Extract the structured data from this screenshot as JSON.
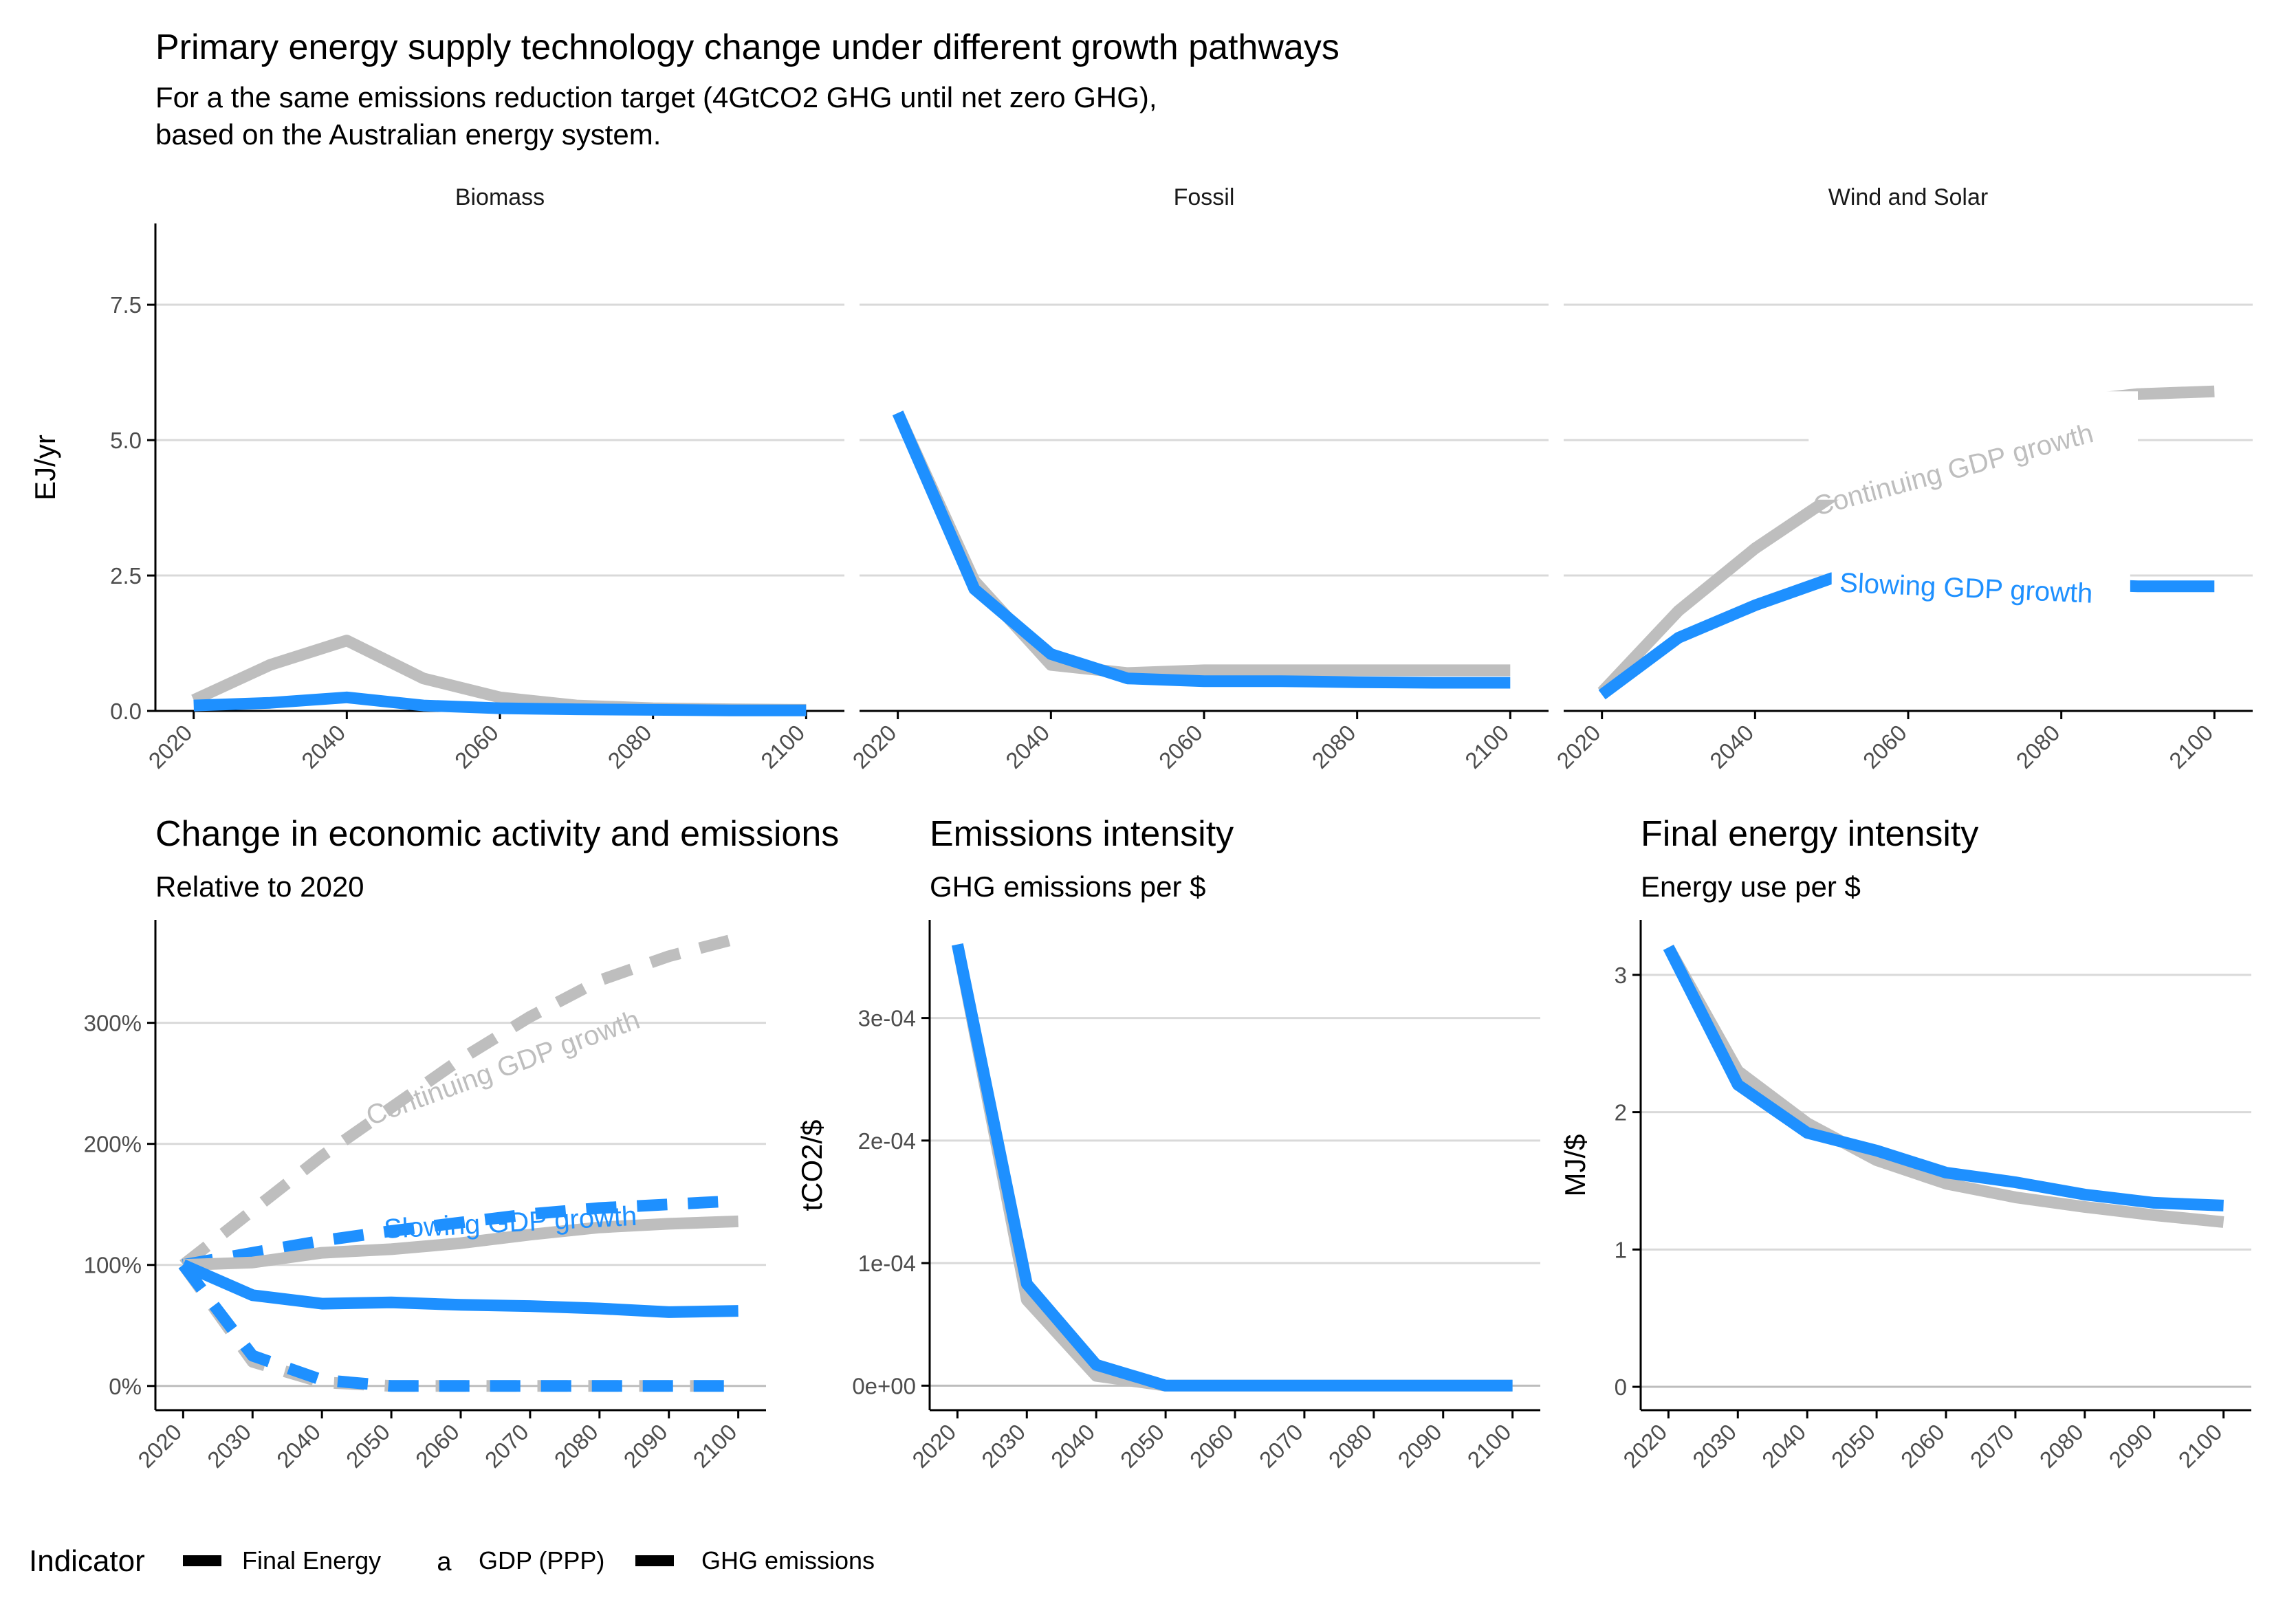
{
  "colors": {
    "continuing": "#bebebe",
    "slowing": "#1e90ff",
    "grid": "#d9d9d9",
    "axis": "#000000",
    "text": "#000000",
    "tick_text": "#4d4d4d"
  },
  "figure": {
    "title": "Primary energy supply technology change under different growth pathways",
    "subtitle_line1": "For a the same emissions reduction target (4GtCO2 GHG until net zero GHG),",
    "subtitle_line2": "based on the Australian energy system."
  },
  "legend": {
    "title": "Indicator",
    "items": [
      "Final Energy",
      "GDP (PPP)",
      "GHG emissions"
    ],
    "glyph_letter": "a"
  },
  "chart_data": [
    {
      "id": "primary-energy",
      "type": "line",
      "facets": [
        "Biomass",
        "Fossil",
        "Wind and Solar"
      ],
      "ylabel": "EJ/yr",
      "ylim": [
        0,
        9
      ],
      "yticks": [
        0,
        2.5,
        5,
        7.5
      ],
      "ytick_labels": [
        "0.0",
        "2.5",
        "5.0",
        "7.5"
      ],
      "xlim": [
        2015,
        2105
      ],
      "xticks": [
        2020,
        2040,
        2060,
        2080,
        2100
      ],
      "x": [
        2020,
        2030,
        2040,
        2050,
        2060,
        2070,
        2080,
        2090,
        2100
      ],
      "series": {
        "Biomass": {
          "continuing": [
            0.2,
            0.85,
            1.3,
            0.6,
            0.25,
            0.1,
            0.05,
            0.03,
            0.02
          ],
          "slowing": [
            0.1,
            0.15,
            0.25,
            0.1,
            0.05,
            0.03,
            0.02,
            0.01,
            0.01
          ]
        },
        "Fossil": {
          "continuing": [
            5.5,
            2.4,
            0.85,
            0.7,
            0.75,
            0.75,
            0.75,
            0.75,
            0.75
          ],
          "slowing": [
            5.5,
            2.25,
            1.05,
            0.6,
            0.55,
            0.55,
            0.53,
            0.52,
            0.52
          ]
        },
        "Wind and Solar": {
          "continuing": [
            0.35,
            1.85,
            3.0,
            3.95,
            4.75,
            5.35,
            5.7,
            5.85,
            5.9
          ],
          "slowing": [
            0.3,
            1.35,
            1.95,
            2.45,
            2.5,
            2.45,
            2.35,
            2.3,
            2.3
          ]
        }
      },
      "annotations": [
        {
          "facet": "Wind and Solar",
          "text": "Continuing GDP growth",
          "series": "continuing"
        },
        {
          "facet": "Wind and Solar",
          "text": "Slowing GDP growth",
          "series": "slowing"
        }
      ]
    },
    {
      "id": "economic-activity",
      "type": "line",
      "title": "Change in economic activity and emissions",
      "subtitle": "Relative to 2020",
      "ylim": [
        -0.2,
        3.85
      ],
      "yticks": [
        0,
        1,
        2,
        3
      ],
      "ytick_labels": [
        "0%",
        "100%",
        "200%",
        "300%"
      ],
      "xlim": [
        2016,
        2104
      ],
      "xticks": [
        2020,
        2030,
        2040,
        2050,
        2060,
        2070,
        2080,
        2090,
        2100
      ],
      "x": [
        2020,
        2030,
        2040,
        2050,
        2060,
        2070,
        2080,
        2090,
        2100
      ],
      "series": [
        {
          "indicator": "GDP (PPP)",
          "pathway": "continuing",
          "values": [
            1.0,
            1.45,
            1.9,
            2.3,
            2.7,
            3.05,
            3.35,
            3.55,
            3.7
          ]
        },
        {
          "indicator": "GDP (PPP)",
          "pathway": "slowing",
          "values": [
            1.0,
            1.1,
            1.2,
            1.28,
            1.35,
            1.42,
            1.47,
            1.5,
            1.53
          ]
        },
        {
          "indicator": "Final Energy",
          "pathway": "continuing",
          "values": [
            1.0,
            1.02,
            1.1,
            1.13,
            1.18,
            1.25,
            1.31,
            1.34,
            1.36
          ]
        },
        {
          "indicator": "Final Energy",
          "pathway": "slowing",
          "values": [
            1.0,
            0.75,
            0.68,
            0.69,
            0.67,
            0.66,
            0.64,
            0.61,
            0.62
          ]
        },
        {
          "indicator": "GHG emissions",
          "pathway": "continuing",
          "values": [
            1.0,
            0.2,
            0.03,
            0.0,
            0.0,
            0.0,
            0.0,
            0.0,
            0.0
          ]
        },
        {
          "indicator": "GHG emissions",
          "pathway": "slowing",
          "values": [
            1.0,
            0.25,
            0.05,
            0.0,
            0.0,
            0.0,
            0.0,
            0.0,
            0.0
          ]
        }
      ],
      "annotations": [
        {
          "text": "Continuing GDP growth",
          "series": "continuing"
        },
        {
          "text": "Slowing GDP growth",
          "series": "slowing"
        }
      ]
    },
    {
      "id": "emissions-intensity",
      "type": "line",
      "title": "Emissions intensity",
      "subtitle": "GHG emissions per $",
      "ylabel": "tCO2/$",
      "ylim": [
        -2e-05,
        0.00038
      ],
      "yticks": [
        0,
        0.0001,
        0.0002,
        0.0003
      ],
      "ytick_labels": [
        "0e+00",
        "1e-04",
        "2e-04",
        "3e-04"
      ],
      "xlim": [
        2016,
        2104
      ],
      "xticks": [
        2020,
        2030,
        2040,
        2050,
        2060,
        2070,
        2080,
        2090,
        2100
      ],
      "x": [
        2020,
        2030,
        2040,
        2050,
        2060,
        2070,
        2080,
        2090,
        2100
      ],
      "series": {
        "continuing": [
          0.00036,
          7e-05,
          8e-06,
          0,
          0,
          0,
          0,
          0,
          0
        ],
        "slowing": [
          0.00036,
          8.3e-05,
          1.7e-05,
          0,
          0,
          0,
          0,
          0,
          0
        ]
      }
    },
    {
      "id": "final-energy-intensity",
      "type": "line",
      "title": "Final energy intensity",
      "subtitle": "Energy use per $",
      "ylabel": "MJ/$",
      "ylim": [
        -0.17,
        3.4
      ],
      "yticks": [
        0,
        1,
        2,
        3
      ],
      "ytick_labels": [
        "0",
        "1",
        "2",
        "3"
      ],
      "xlim": [
        2016,
        2104
      ],
      "xticks": [
        2020,
        2030,
        2040,
        2050,
        2060,
        2070,
        2080,
        2090,
        2100
      ],
      "x": [
        2020,
        2030,
        2040,
        2050,
        2060,
        2070,
        2080,
        2090,
        2100
      ],
      "series": {
        "continuing": [
          3.2,
          2.3,
          1.92,
          1.65,
          1.48,
          1.38,
          1.31,
          1.25,
          1.2
        ],
        "slowing": [
          3.2,
          2.2,
          1.85,
          1.72,
          1.56,
          1.49,
          1.4,
          1.34,
          1.32
        ]
      }
    }
  ]
}
